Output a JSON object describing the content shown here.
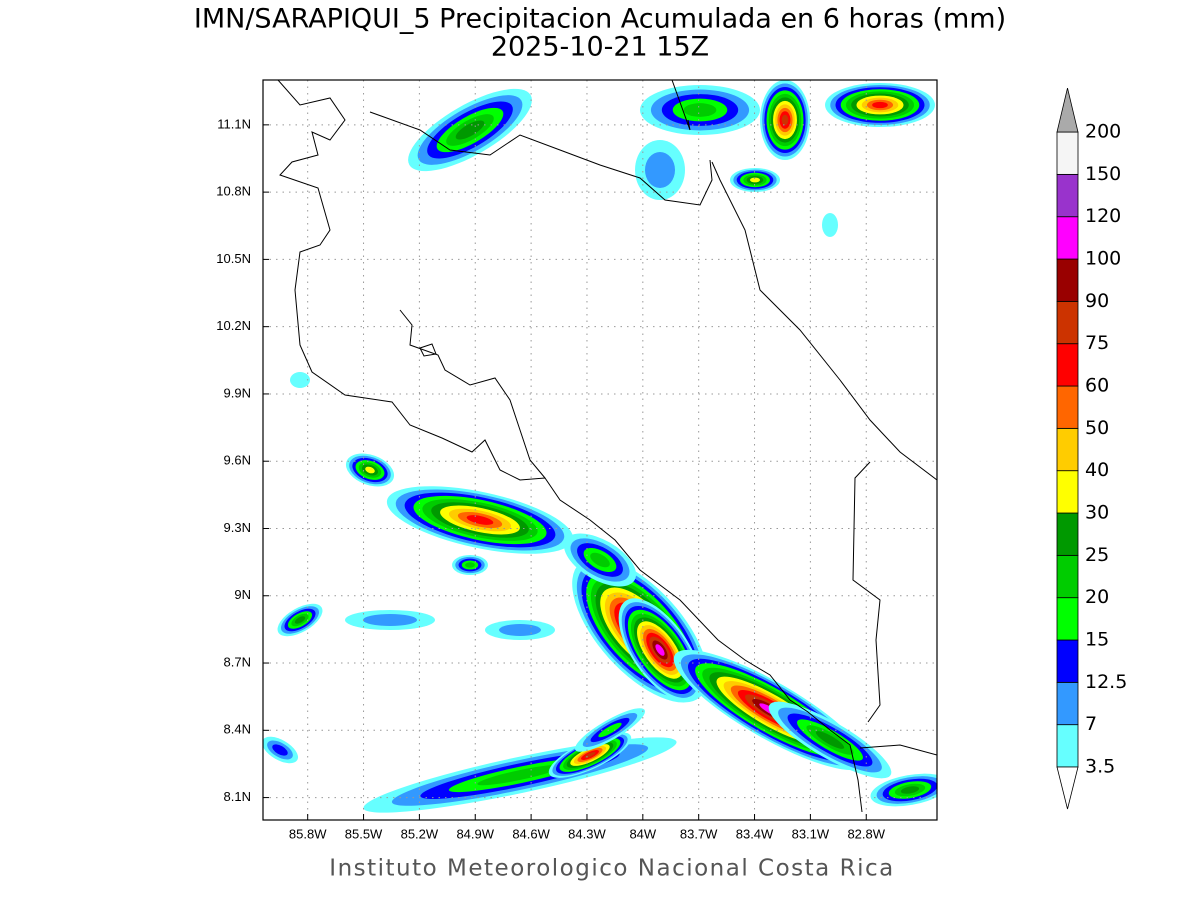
{
  "chart_data": {
    "type": "map",
    "title": "IMN/SARAPIQUI_5 Precipitacion Acumulada en 6 horas (mm)",
    "subtitle": "2025-10-21 15Z",
    "footer": "Instituto Meteorologico Nacional Costa Rica",
    "lonlim": [
      -86.04,
      -82.42
    ],
    "latlim": [
      8.0,
      11.3
    ],
    "grid": true,
    "xticks": [
      {
        "value": -85.8,
        "label": "85.8W"
      },
      {
        "value": -85.5,
        "label": "85.5W"
      },
      {
        "value": -85.2,
        "label": "85.2W"
      },
      {
        "value": -84.9,
        "label": "84.9W"
      },
      {
        "value": -84.6,
        "label": "84.6W"
      },
      {
        "value": -84.3,
        "label": "84.3W"
      },
      {
        "value": -84.0,
        "label": "84W"
      },
      {
        "value": -83.7,
        "label": "83.7W"
      },
      {
        "value": -83.4,
        "label": "83.4W"
      },
      {
        "value": -83.1,
        "label": "83.1W"
      },
      {
        "value": -82.8,
        "label": "82.8W"
      }
    ],
    "yticks": [
      {
        "value": 8.1,
        "label": "8.1N"
      },
      {
        "value": 8.4,
        "label": "8.4N"
      },
      {
        "value": 8.7,
        "label": "8.7N"
      },
      {
        "value": 9.0,
        "label": "9N"
      },
      {
        "value": 9.3,
        "label": "9.3N"
      },
      {
        "value": 9.6,
        "label": "9.6N"
      },
      {
        "value": 9.9,
        "label": "9.9N"
      },
      {
        "value": 10.2,
        "label": "10.2N"
      },
      {
        "value": 10.5,
        "label": "10.5N"
      },
      {
        "value": 10.8,
        "label": "10.8N"
      },
      {
        "value": 11.1,
        "label": "11.1N"
      }
    ],
    "levels": [
      3.5,
      7,
      12.5,
      15,
      20,
      25,
      30,
      40,
      50,
      60,
      75,
      90,
      100,
      120,
      150,
      200
    ],
    "colors": [
      "#66ffff",
      "#3399ff",
      "#0000ff",
      "#00ff00",
      "#00cc00",
      "#009900",
      "#ffff00",
      "#ffcc00",
      "#ff6600",
      "#ff0000",
      "#cc3300",
      "#990000",
      "#ff00ff",
      "#9933cc",
      "#f5f5f5"
    ],
    "under_color": "#ffffff",
    "over_color": "#aaaaaa"
  }
}
